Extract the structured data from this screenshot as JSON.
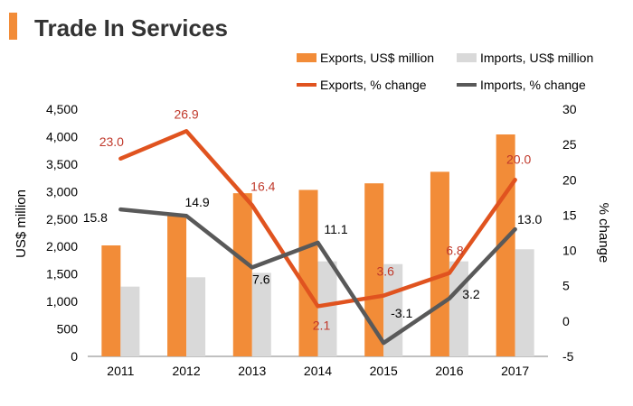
{
  "chart_data": {
    "type": "bar",
    "title": "Trade In Services",
    "categories": [
      "2011",
      "2012",
      "2013",
      "2014",
      "2015",
      "2016",
      "2017"
    ],
    "ylabel_left": "US$ million",
    "ylabel_right": "% change",
    "ylim_left": [
      0,
      4500
    ],
    "ylim_right": [
      -5,
      30
    ],
    "yticks_left": [
      "0",
      "500",
      "1,000",
      "1,500",
      "2,000",
      "2,500",
      "3,000",
      "3,500",
      "4,000",
      "4,500"
    ],
    "yticks_right": [
      "-5",
      "0",
      "5",
      "10",
      "15",
      "20",
      "25",
      "30"
    ],
    "bar_series": [
      {
        "name": "Exports, US$ million",
        "color": "#F28C38",
        "values": [
          2020,
          2560,
          2970,
          3030,
          3150,
          3360,
          4040
        ]
      },
      {
        "name": "Imports, US$ million",
        "color": "#D9D9D9",
        "values": [
          1270,
          1440,
          1520,
          1730,
          1680,
          1730,
          1950
        ]
      }
    ],
    "line_series": [
      {
        "name": "Exports, % change",
        "color": "#E0531F",
        "label_color": "#C0392B",
        "values": [
          23.0,
          26.9,
          16.4,
          2.1,
          3.6,
          6.8,
          20.0
        ],
        "labels": [
          "23.0",
          "26.9",
          "16.4",
          "2.1",
          "3.6",
          "6.8",
          "20.0"
        ]
      },
      {
        "name": "Imports, % change",
        "color": "#595959",
        "label_color": "#000000",
        "values": [
          15.8,
          14.9,
          7.6,
          11.1,
          -3.1,
          3.2,
          13.0
        ],
        "labels": [
          "15.8",
          "14.9",
          "7.6",
          "11.1",
          "-3.1",
          "3.2",
          "13.0"
        ]
      }
    ],
    "accent_color": "#F28C38"
  }
}
